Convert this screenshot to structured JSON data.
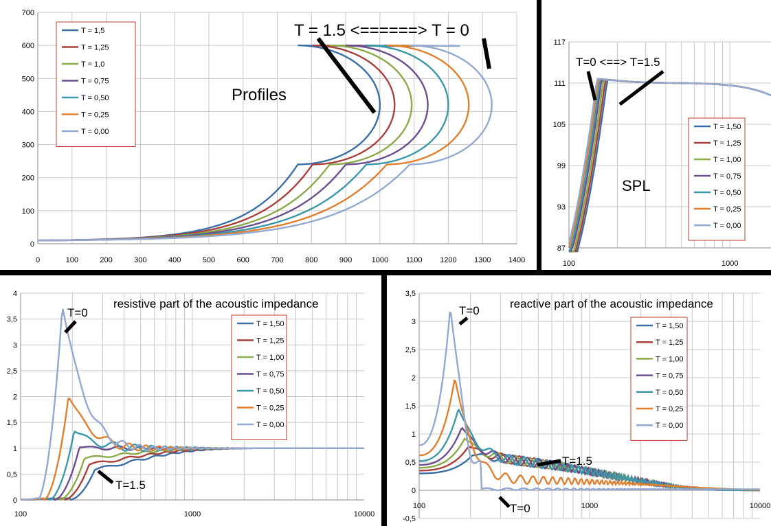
{
  "chart_data": [
    {
      "id": "profiles",
      "type": "line",
      "title": "Profiles",
      "annotation": "T = 1.5 <======> T = 0",
      "xlim": [
        0,
        1400
      ],
      "ylim": [
        0,
        700
      ],
      "x_ticks": [
        "0",
        "100",
        "200",
        "300",
        "400",
        "500",
        "600",
        "700",
        "800",
        "900",
        "1000",
        "1100",
        "1200",
        "1300",
        "1400"
      ],
      "y_ticks": [
        "0",
        "100",
        "200",
        "300",
        "400",
        "500",
        "600",
        "700"
      ],
      "grid": true,
      "legend_position": "top-left",
      "series": [
        {
          "name": "T = 1,5",
          "color": "#3a6ea5",
          "x_max": 1000,
          "tip_x": 893
        },
        {
          "name": "T = 1,25",
          "color": "#a8403c",
          "x_max": 1043,
          "tip_x": 933
        },
        {
          "name": "T = 1,0",
          "color": "#8aaa4a",
          "x_max": 1093,
          "tip_x": 973
        },
        {
          "name": "T = 0,75",
          "color": "#6b4e8f",
          "x_max": 1140,
          "tip_x": 1013
        },
        {
          "name": "T = 0,50",
          "color": "#3a98aa",
          "x_max": 1200,
          "tip_x": 1063
        },
        {
          "name": "T = 0,25",
          "color": "#e07f2e",
          "x_max": 1260,
          "tip_x": 1123
        },
        {
          "name": "T = 0,00",
          "color": "#93a9d1",
          "x_max": 1327,
          "tip_x": 1203
        }
      ]
    },
    {
      "id": "spl",
      "type": "line",
      "title": "SPL",
      "annotation": "T=0 <==> T=1.5",
      "x_scale": "log",
      "xlim": [
        100,
        1800
      ],
      "ylim": [
        87,
        117
      ],
      "x_ticks": [
        "100",
        "1000"
      ],
      "y_ticks": [
        "87",
        "93",
        "99",
        "105",
        "111",
        "117"
      ],
      "grid": true,
      "legend_position": "center-right",
      "series": [
        {
          "name": "T = 1,50",
          "color": "#3a6ea5",
          "shift": 1.16
        },
        {
          "name": "T = 1,25",
          "color": "#a8403c",
          "shift": 1.13
        },
        {
          "name": "T = 1,00",
          "color": "#8aaa4a",
          "shift": 1.1
        },
        {
          "name": "T = 0,75",
          "color": "#6b4e8f",
          "shift": 1.07
        },
        {
          "name": "T = 0,50",
          "color": "#3a98aa",
          "shift": 1.045
        },
        {
          "name": "T = 0,25",
          "color": "#e07f2e",
          "shift": 1.02
        },
        {
          "name": "T = 0,00",
          "color": "#93a9d1",
          "shift": 1.0
        }
      ]
    },
    {
      "id": "resistive",
      "type": "line",
      "title": "resistive part of the acoustic impedance",
      "annotations": [
        "T=0",
        "T=1.5"
      ],
      "x_scale": "log",
      "xlim": [
        100,
        10000
      ],
      "ylim": [
        0,
        4
      ],
      "x_ticks": [
        "100",
        "1000",
        "10000"
      ],
      "y_ticks": [
        "0",
        "0,5",
        "1",
        "1,5",
        "2",
        "2,5",
        "3",
        "3,5",
        "4"
      ],
      "grid": true,
      "legend_position": "center-right",
      "series": [
        {
          "name": "T = 1,50",
          "color": "#3a6ea5",
          "peak": 0.58,
          "peak_f": 270
        },
        {
          "name": "T = 1,25",
          "color": "#a8403c",
          "peak": 0.68,
          "peak_f": 250
        },
        {
          "name": "T = 1,00",
          "color": "#8aaa4a",
          "peak": 0.8,
          "peak_f": 235
        },
        {
          "name": "T = 0,75",
          "color": "#6b4e8f",
          "peak": 1.02,
          "peak_f": 220
        },
        {
          "name": "T = 0,50",
          "color": "#3a98aa",
          "peak": 1.33,
          "peak_f": 205
        },
        {
          "name": "T = 0,25",
          "color": "#e07f2e",
          "peak": 2.0,
          "peak_f": 190
        },
        {
          "name": "T = 0,00",
          "color": "#93a9d1",
          "peak": 3.75,
          "peak_f": 175
        }
      ]
    },
    {
      "id": "reactive",
      "type": "line",
      "title": "reactive part of the acoustic impedance",
      "annotations": [
        "T=0",
        "T=1.5",
        "T=0"
      ],
      "x_scale": "log",
      "xlim": [
        100,
        10000
      ],
      "ylim": [
        -0.5,
        3.5
      ],
      "x_ticks": [
        "100",
        "1000",
        "10000"
      ],
      "y_ticks": [
        "-0,5",
        "0",
        "0,5",
        "1",
        "1,5",
        "2",
        "2,5",
        "3",
        "3,5"
      ],
      "grid": true,
      "legend_position": "center-right",
      "series": [
        {
          "name": "T = 1,50",
          "color": "#3a6ea5",
          "peak": 0.62,
          "start": 0.3
        },
        {
          "name": "T = 1,25",
          "color": "#a8403c",
          "peak": 0.78,
          "start": 0.35
        },
        {
          "name": "T = 1,00",
          "color": "#8aaa4a",
          "peak": 0.92,
          "start": 0.4
        },
        {
          "name": "T = 0,75",
          "color": "#6b4e8f",
          "peak": 1.12,
          "start": 0.45
        },
        {
          "name": "T = 0,50",
          "color": "#3a98aa",
          "peak": 1.45,
          "start": 0.52
        },
        {
          "name": "T = 0,25",
          "color": "#e07f2e",
          "peak": 2.0,
          "start": 0.62
        },
        {
          "name": "T = 0,00",
          "color": "#93a9d1",
          "peak": 3.22,
          "start": 0.8
        }
      ]
    }
  ]
}
